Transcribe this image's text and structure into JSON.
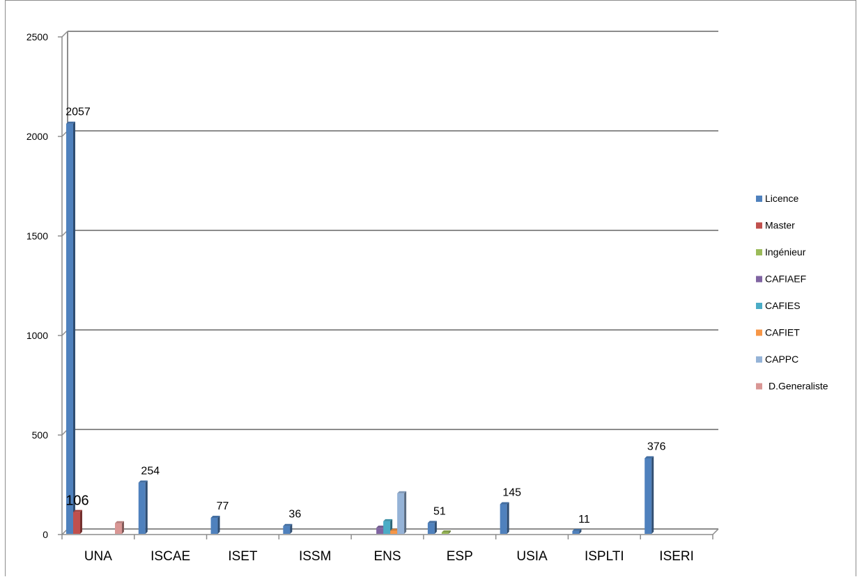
{
  "chart_data": {
    "type": "bar",
    "title": "",
    "xlabel": "",
    "ylabel": "",
    "ylim": [
      0,
      2500
    ],
    "yticks": [
      0,
      500,
      1000,
      1500,
      2000,
      2500
    ],
    "grid": true,
    "legend_position": "right",
    "categories": [
      "UNA",
      "ISCAE",
      "ISET",
      "ISSM",
      "ENS",
      "ESP",
      "USIA",
      "ISPLTI",
      "ISERI"
    ],
    "series": [
      {
        "name": "Licence",
        "color": "#4f81bd",
        "values": [
          2057,
          254,
          77,
          36,
          0,
          51,
          145,
          11,
          376
        ]
      },
      {
        "name": "Master",
        "color": "#c0504d",
        "values": [
          106,
          0,
          0,
          0,
          0,
          0,
          0,
          0,
          0
        ]
      },
      {
        "name": "Ingénieur",
        "color": "#9bbb59",
        "values": [
          0,
          0,
          0,
          0,
          0,
          3,
          0,
          0,
          0
        ]
      },
      {
        "name": "CAFIAEF",
        "color": "#8064a2",
        "values": [
          0,
          0,
          0,
          0,
          27,
          0,
          0,
          0,
          0
        ]
      },
      {
        "name": "CAFIES",
        "color": "#4bacc6",
        "values": [
          0,
          0,
          0,
          0,
          60,
          0,
          0,
          0,
          0
        ]
      },
      {
        "name": "CAFIET",
        "color": "#f79646",
        "values": [
          0,
          0,
          0,
          0,
          12,
          0,
          0,
          0,
          0
        ]
      },
      {
        "name": "CAPPC",
        "color": "#95b3d7",
        "values": [
          0,
          0,
          0,
          0,
          200,
          0,
          0,
          0,
          0
        ]
      },
      {
        "name": "D.Generaliste",
        "color": "#d99694",
        "values": [
          50,
          0,
          0,
          0,
          0,
          0,
          0,
          0,
          0
        ]
      }
    ],
    "data_labels": [
      {
        "category": "UNA",
        "series": "Licence",
        "text": "2057"
      },
      {
        "category": "UNA",
        "series": "Master",
        "text": "106"
      },
      {
        "category": "ISCAE",
        "series": "Licence",
        "text": "254"
      },
      {
        "category": "ISET",
        "series": "Licence",
        "text": "77"
      },
      {
        "category": "ISSM",
        "series": "Licence",
        "text": "36"
      },
      {
        "category": "ESP",
        "series": "Licence",
        "text": "51"
      },
      {
        "category": "USIA",
        "series": "Licence",
        "text": "145"
      },
      {
        "category": "ISPLTI",
        "series": "Licence",
        "text": "11"
      },
      {
        "category": "ISERI",
        "series": "Licence",
        "text": "376"
      }
    ]
  }
}
